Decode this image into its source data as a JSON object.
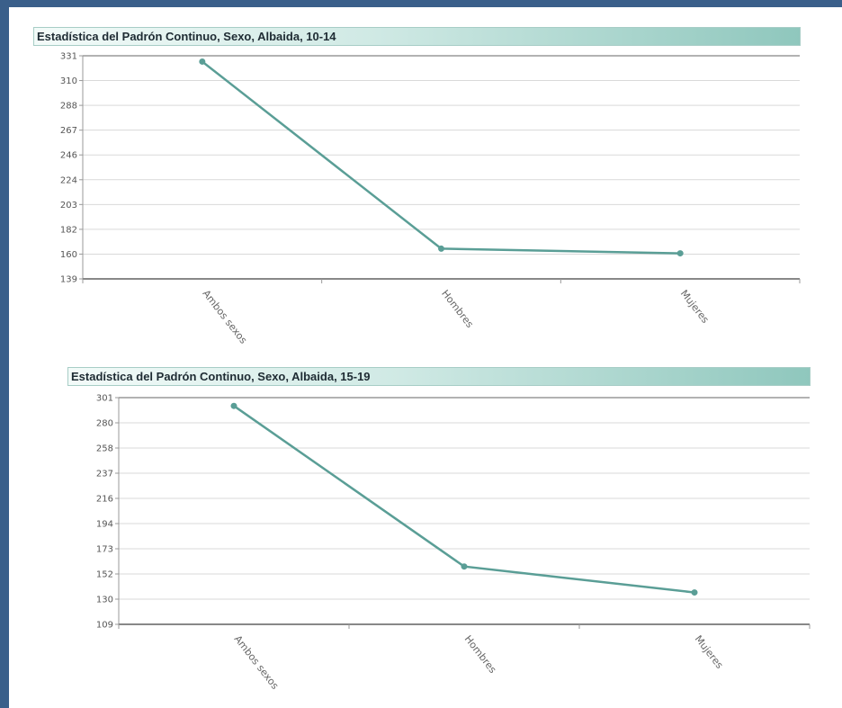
{
  "chart_data": [
    {
      "type": "line",
      "title": "Estadística del Padrón Continuo, Sexo, Albaida, 10-14",
      "categories": [
        "Ambos sexos",
        "Hombres",
        "Mujeres"
      ],
      "values": [
        326,
        165,
        161
      ],
      "yticks": [
        "331",
        "310",
        "288",
        "267",
        "246",
        "224",
        "203",
        "182",
        "160",
        "139"
      ],
      "ylim": [
        139,
        331
      ],
      "grid": true,
      "color": "#5a9e96"
    },
    {
      "type": "line",
      "title": "Estadística del Padrón Continuo, Sexo, Albaida, 15-19",
      "categories": [
        "Ambos sexos",
        "Hombres",
        "Mujeres"
      ],
      "values": [
        294,
        158,
        136
      ],
      "yticks": [
        "301",
        "280",
        "258",
        "237",
        "216",
        "194",
        "173",
        "152",
        "130",
        "109"
      ],
      "ylim": [
        109,
        301
      ],
      "grid": true,
      "color": "#5a9e96"
    }
  ]
}
